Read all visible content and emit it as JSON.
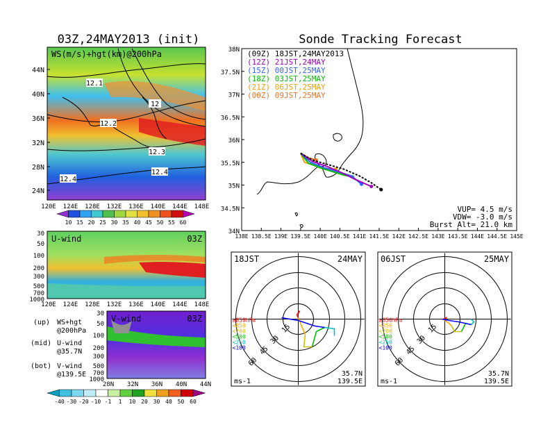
{
  "map_panel": {
    "title": "03Z,24MAY2013 (init)",
    "label": "WS(m/s)+hgt(km)@200hPa",
    "lat_ticks": [
      "44N",
      "40N",
      "36N",
      "32N",
      "28N",
      "24N"
    ],
    "lon_ticks": [
      "120E",
      "124E",
      "128E",
      "132E",
      "136E",
      "140E",
      "144E",
      "148E"
    ],
    "contour_labels": [
      "12.1",
      "12",
      "12.2",
      "12.3",
      "12.4",
      "12.4"
    ],
    "colorbar_ticks": [
      "10",
      "15",
      "20",
      "25",
      "30",
      "35",
      "40",
      "45",
      "50",
      "55",
      "60"
    ]
  },
  "u_panel": {
    "label": "U-wind",
    "time": "03Z",
    "p_ticks": [
      "30",
      "50",
      "100",
      "200",
      "300",
      "500",
      "700",
      "1000"
    ],
    "lon_ticks": [
      "120E",
      "124E",
      "128E",
      "132E",
      "136E",
      "140E",
      "144E",
      "148E"
    ]
  },
  "v_panel": {
    "label": "V-wind",
    "time": "03Z",
    "p_ticks": [
      "30",
      "50",
      "100",
      "200",
      "300",
      "500",
      "700",
      "1000"
    ],
    "lat_ticks": [
      "28N",
      "32N",
      "36N",
      "40N",
      "44N"
    ],
    "colorbar_ticks": [
      "-40",
      "-30",
      "-20",
      "-10",
      "-1",
      "1",
      "10",
      "20",
      "30",
      "40",
      "50",
      "60"
    ]
  },
  "legend_notes": [
    {
      "key": "(up)",
      "line1": "WS+hgt",
      "line2": "@200hPa"
    },
    {
      "key": "(mid)",
      "line1": "U-wind",
      "line2": "@35.7N"
    },
    {
      "key": "(bot)",
      "line1": "V-wind",
      "line2": "@139.5E"
    }
  ],
  "track_panel": {
    "title": "Sonde Tracking Forecast",
    "lat_ticks": [
      "38N",
      "37.5N",
      "37N",
      "36.5N",
      "36N",
      "35.5N",
      "35N",
      "34.5N",
      "34N"
    ],
    "lon_ticks": [
      "138E",
      "138.5E",
      "139E",
      "139.5E",
      "140E",
      "140.5E",
      "141E",
      "141.5E",
      "142E",
      "142.5E",
      "143E",
      "143.5E",
      "144E",
      "144.5E",
      "145E"
    ],
    "vup": "VUP= 4.5 m/s",
    "vdw": "VDW= -3.0 m/s",
    "burst": "Burst Alt= 21.0 km"
  },
  "hodo_left": {
    "left": "18JST",
    "right": "24MAY",
    "loc1": "35.7N",
    "loc2": "139.5E",
    "unit": "ms-1"
  },
  "hodo_right": {
    "left": "06JST",
    "right": "25MAY",
    "loc1": "35.7N",
    "loc2": "139.5E",
    "unit": "ms-1"
  },
  "hodo_rings": [
    "15",
    "30",
    "45",
    "60"
  ],
  "hodo_legend": [
    {
      "label": "≥850hPa",
      "color": "#ff0000"
    },
    {
      "label": "<850",
      "color": "#ffa500"
    },
    {
      "label": "<700",
      "color": "#d0c000"
    },
    {
      "label": "<500",
      "color": "#00c000"
    },
    {
      "label": "<250",
      "color": "#00c0c0"
    },
    {
      "label": "<100",
      "color": "#0000ff"
    }
  ],
  "chart_data": {
    "type": "line",
    "title": "Sonde Tracking Forecast",
    "xlim": [
      138,
      145
    ],
    "ylim": [
      34,
      38
    ],
    "series": [
      {
        "name": "(09Z) 18JST,24MAY2013",
        "color": "#000000",
        "points": [
          [
            139.5,
            35.7
          ],
          [
            139.8,
            35.55
          ],
          [
            140.2,
            35.45
          ],
          [
            140.6,
            35.35
          ],
          [
            141.0,
            35.2
          ],
          [
            141.3,
            35.05
          ],
          [
            141.55,
            34.9
          ]
        ]
      },
      {
        "name": "(12Z) 21JST,24MAY",
        "color": "#a000c0",
        "points": [
          [
            139.5,
            35.7
          ],
          [
            139.8,
            35.52
          ],
          [
            140.2,
            35.4
          ],
          [
            140.6,
            35.25
          ],
          [
            140.9,
            35.12
          ],
          [
            141.3,
            34.97
          ]
        ]
      },
      {
        "name": "(15Z) 00JST,25MAY",
        "color": "#3060ff",
        "points": [
          [
            139.5,
            35.7
          ],
          [
            139.75,
            35.5
          ],
          [
            140.1,
            35.38
          ],
          [
            140.5,
            35.28
          ],
          [
            140.8,
            35.2
          ],
          [
            141.05,
            35.02
          ]
        ]
      },
      {
        "name": "(18Z) 03JST,25MAY",
        "color": "#00c000",
        "points": [
          [
            139.5,
            35.7
          ],
          [
            139.7,
            35.48
          ],
          [
            140.0,
            35.38
          ],
          [
            140.3,
            35.3
          ],
          [
            140.6,
            35.22
          ],
          [
            140.82,
            35.18
          ]
        ]
      },
      {
        "name": "(21Z) 06JST,25MAY",
        "color": "#f0a000",
        "points": [
          [
            139.5,
            35.7
          ],
          [
            139.6,
            35.5
          ],
          [
            139.8,
            35.45
          ],
          [
            140.0,
            35.38
          ],
          [
            140.2,
            35.36
          ],
          [
            140.4,
            35.35
          ]
        ]
      },
      {
        "name": "(00Z) 09JST,25MAY",
        "color": "#f07020",
        "points": [
          [
            139.5,
            35.7
          ],
          [
            139.7,
            35.6
          ],
          [
            139.9,
            35.55
          ]
        ]
      }
    ]
  }
}
